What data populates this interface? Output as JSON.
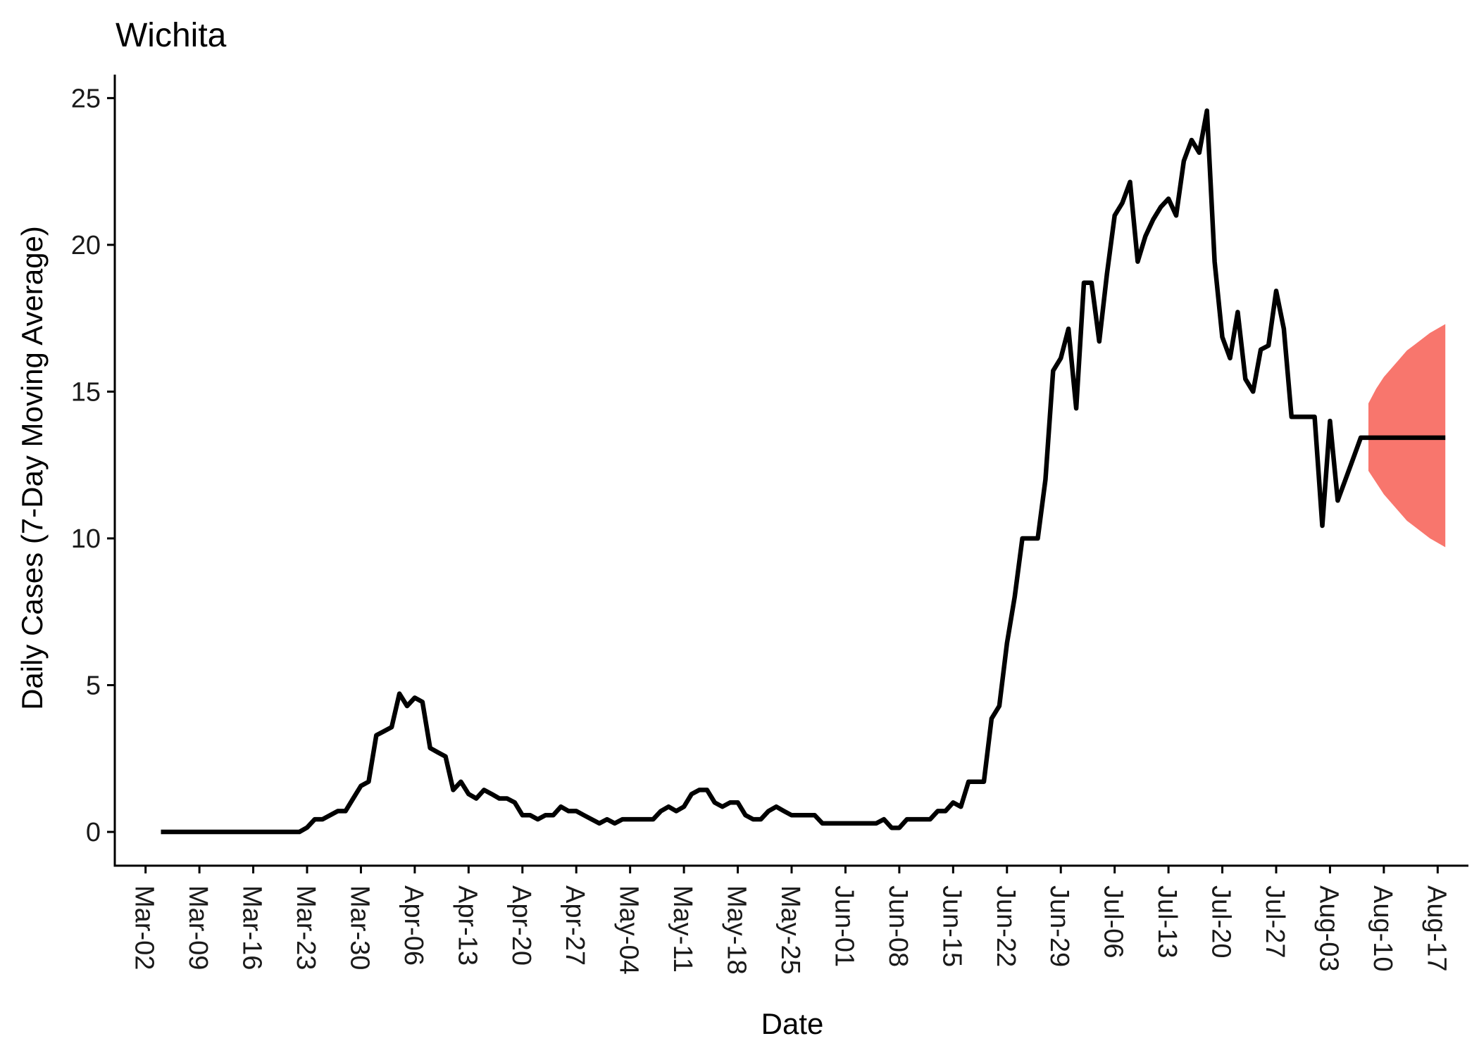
{
  "chart_data": {
    "type": "line",
    "title": "Wichita",
    "xlabel": "Date",
    "ylabel": "Daily Cases (7-Day Moving Average)",
    "ylim": [
      -1.15,
      25.8
    ],
    "xlim": [
      "2020-02-27",
      "2020-08-21"
    ],
    "yticks": [
      0,
      5,
      10,
      15,
      20,
      25
    ],
    "xticks": [
      {
        "date": "2020-03-02",
        "label": "Mar-02"
      },
      {
        "date": "2020-03-09",
        "label": "Mar-09"
      },
      {
        "date": "2020-03-16",
        "label": "Mar-16"
      },
      {
        "date": "2020-03-23",
        "label": "Mar-23"
      },
      {
        "date": "2020-03-30",
        "label": "Mar-30"
      },
      {
        "date": "2020-04-06",
        "label": "Apr-06"
      },
      {
        "date": "2020-04-13",
        "label": "Apr-13"
      },
      {
        "date": "2020-04-20",
        "label": "Apr-20"
      },
      {
        "date": "2020-04-27",
        "label": "Apr-27"
      },
      {
        "date": "2020-05-04",
        "label": "May-04"
      },
      {
        "date": "2020-05-11",
        "label": "May-11"
      },
      {
        "date": "2020-05-18",
        "label": "May-18"
      },
      {
        "date": "2020-05-25",
        "label": "May-25"
      },
      {
        "date": "2020-06-01",
        "label": "Jun-01"
      },
      {
        "date": "2020-06-08",
        "label": "Jun-08"
      },
      {
        "date": "2020-06-15",
        "label": "Jun-15"
      },
      {
        "date": "2020-06-22",
        "label": "Jun-22"
      },
      {
        "date": "2020-06-29",
        "label": "Jun-29"
      },
      {
        "date": "2020-07-06",
        "label": "Jul-06"
      },
      {
        "date": "2020-07-13",
        "label": "Jul-13"
      },
      {
        "date": "2020-07-20",
        "label": "Jul-20"
      },
      {
        "date": "2020-07-27",
        "label": "Jul-27"
      },
      {
        "date": "2020-08-03",
        "label": "Aug-03"
      },
      {
        "date": "2020-08-10",
        "label": "Aug-10"
      },
      {
        "date": "2020-08-17",
        "label": "Aug-17"
      }
    ],
    "grid": false,
    "legend": "none",
    "series": [
      {
        "color": "#000000",
        "points": [
          [
            "2020-03-04",
            0
          ],
          [
            "2020-03-05",
            0
          ],
          [
            "2020-03-06",
            0
          ],
          [
            "2020-03-07",
            0
          ],
          [
            "2020-03-08",
            0
          ],
          [
            "2020-03-09",
            0
          ],
          [
            "2020-03-10",
            0
          ],
          [
            "2020-03-11",
            0
          ],
          [
            "2020-03-12",
            0
          ],
          [
            "2020-03-13",
            0
          ],
          [
            "2020-03-14",
            0
          ],
          [
            "2020-03-15",
            0
          ],
          [
            "2020-03-16",
            0
          ],
          [
            "2020-03-17",
            0
          ],
          [
            "2020-03-18",
            0
          ],
          [
            "2020-03-19",
            0
          ],
          [
            "2020-03-20",
            0
          ],
          [
            "2020-03-21",
            0
          ],
          [
            "2020-03-22",
            0
          ],
          [
            "2020-03-23",
            0.15
          ],
          [
            "2020-03-24",
            0.43
          ],
          [
            "2020-03-25",
            0.43
          ],
          [
            "2020-03-26",
            0.57
          ],
          [
            "2020-03-27",
            0.71
          ],
          [
            "2020-03-28",
            0.71
          ],
          [
            "2020-03-29",
            1.14
          ],
          [
            "2020-03-30",
            1.57
          ],
          [
            "2020-03-31",
            1.71
          ],
          [
            "2020-04-01",
            3.29
          ],
          [
            "2020-04-02",
            3.43
          ],
          [
            "2020-04-03",
            3.57
          ],
          [
            "2020-04-04",
            4.71
          ],
          [
            "2020-04-05",
            4.29
          ],
          [
            "2020-04-06",
            4.57
          ],
          [
            "2020-04-07",
            4.43
          ],
          [
            "2020-04-08",
            2.86
          ],
          [
            "2020-04-09",
            2.71
          ],
          [
            "2020-04-10",
            2.57
          ],
          [
            "2020-04-11",
            1.43
          ],
          [
            "2020-04-12",
            1.71
          ],
          [
            "2020-04-13",
            1.29
          ],
          [
            "2020-04-14",
            1.14
          ],
          [
            "2020-04-15",
            1.43
          ],
          [
            "2020-04-16",
            1.29
          ],
          [
            "2020-04-17",
            1.14
          ],
          [
            "2020-04-18",
            1.14
          ],
          [
            "2020-04-19",
            1.0
          ],
          [
            "2020-04-20",
            0.57
          ],
          [
            "2020-04-21",
            0.57
          ],
          [
            "2020-04-22",
            0.43
          ],
          [
            "2020-04-23",
            0.57
          ],
          [
            "2020-04-24",
            0.57
          ],
          [
            "2020-04-25",
            0.86
          ],
          [
            "2020-04-26",
            0.71
          ],
          [
            "2020-04-27",
            0.71
          ],
          [
            "2020-04-28",
            0.57
          ],
          [
            "2020-04-29",
            0.43
          ],
          [
            "2020-04-30",
            0.29
          ],
          [
            "2020-05-01",
            0.43
          ],
          [
            "2020-05-02",
            0.29
          ],
          [
            "2020-05-03",
            0.43
          ],
          [
            "2020-05-04",
            0.43
          ],
          [
            "2020-05-05",
            0.43
          ],
          [
            "2020-05-06",
            0.43
          ],
          [
            "2020-05-07",
            0.43
          ],
          [
            "2020-05-08",
            0.71
          ],
          [
            "2020-05-09",
            0.86
          ],
          [
            "2020-05-10",
            0.71
          ],
          [
            "2020-05-11",
            0.86
          ],
          [
            "2020-05-12",
            1.29
          ],
          [
            "2020-05-13",
            1.43
          ],
          [
            "2020-05-14",
            1.43
          ],
          [
            "2020-05-15",
            1.0
          ],
          [
            "2020-05-16",
            0.86
          ],
          [
            "2020-05-17",
            1.0
          ],
          [
            "2020-05-18",
            1.0
          ],
          [
            "2020-05-19",
            0.57
          ],
          [
            "2020-05-20",
            0.43
          ],
          [
            "2020-05-21",
            0.43
          ],
          [
            "2020-05-22",
            0.71
          ],
          [
            "2020-05-23",
            0.86
          ],
          [
            "2020-05-24",
            0.71
          ],
          [
            "2020-05-25",
            0.57
          ],
          [
            "2020-05-26",
            0.57
          ],
          [
            "2020-05-27",
            0.57
          ],
          [
            "2020-05-28",
            0.57
          ],
          [
            "2020-05-29",
            0.29
          ],
          [
            "2020-05-30",
            0.29
          ],
          [
            "2020-05-31",
            0.29
          ],
          [
            "2020-06-01",
            0.29
          ],
          [
            "2020-06-02",
            0.29
          ],
          [
            "2020-06-03",
            0.29
          ],
          [
            "2020-06-04",
            0.29
          ],
          [
            "2020-06-05",
            0.29
          ],
          [
            "2020-06-06",
            0.43
          ],
          [
            "2020-06-07",
            0.14
          ],
          [
            "2020-06-08",
            0.14
          ],
          [
            "2020-06-09",
            0.43
          ],
          [
            "2020-06-10",
            0.43
          ],
          [
            "2020-06-11",
            0.43
          ],
          [
            "2020-06-12",
            0.43
          ],
          [
            "2020-06-13",
            0.71
          ],
          [
            "2020-06-14",
            0.71
          ],
          [
            "2020-06-15",
            1.0
          ],
          [
            "2020-06-16",
            0.86
          ],
          [
            "2020-06-17",
            1.71
          ],
          [
            "2020-06-18",
            1.71
          ],
          [
            "2020-06-19",
            1.71
          ],
          [
            "2020-06-20",
            3.86
          ],
          [
            "2020-06-21",
            4.29
          ],
          [
            "2020-06-22",
            6.43
          ],
          [
            "2020-06-23",
            8.0
          ],
          [
            "2020-06-24",
            10.0
          ],
          [
            "2020-06-25",
            10.0
          ],
          [
            "2020-06-26",
            10.0
          ],
          [
            "2020-06-27",
            12.0
          ],
          [
            "2020-06-28",
            15.71
          ],
          [
            "2020-06-29",
            16.14
          ],
          [
            "2020-06-30",
            17.14
          ],
          [
            "2020-07-01",
            14.43
          ],
          [
            "2020-07-02",
            18.71
          ],
          [
            "2020-07-03",
            18.71
          ],
          [
            "2020-07-04",
            16.71
          ],
          [
            "2020-07-05",
            19.0
          ],
          [
            "2020-07-06",
            21.0
          ],
          [
            "2020-07-07",
            21.43
          ],
          [
            "2020-07-08",
            22.14
          ],
          [
            "2020-07-09",
            19.43
          ],
          [
            "2020-07-10",
            20.29
          ],
          [
            "2020-07-11",
            20.86
          ],
          [
            "2020-07-12",
            21.29
          ],
          [
            "2020-07-13",
            21.57
          ],
          [
            "2020-07-14",
            21.0
          ],
          [
            "2020-07-15",
            22.86
          ],
          [
            "2020-07-16",
            23.57
          ],
          [
            "2020-07-17",
            23.14
          ],
          [
            "2020-07-18",
            24.57
          ],
          [
            "2020-07-19",
            19.43
          ],
          [
            "2020-07-20",
            16.86
          ],
          [
            "2020-07-21",
            16.14
          ],
          [
            "2020-07-22",
            17.71
          ],
          [
            "2020-07-23",
            15.43
          ],
          [
            "2020-07-24",
            15.0
          ],
          [
            "2020-07-25",
            16.43
          ],
          [
            "2020-07-26",
            16.57
          ],
          [
            "2020-07-27",
            18.43
          ],
          [
            "2020-07-28",
            17.14
          ],
          [
            "2020-07-29",
            14.14
          ],
          [
            "2020-07-30",
            14.14
          ],
          [
            "2020-07-31",
            14.14
          ],
          [
            "2020-08-01",
            14.14
          ],
          [
            "2020-08-02",
            10.43
          ],
          [
            "2020-08-03",
            14.0
          ],
          [
            "2020-08-04",
            11.29
          ],
          [
            "2020-08-05",
            12.0
          ],
          [
            "2020-08-06",
            12.71
          ],
          [
            "2020-08-07",
            13.43
          ],
          [
            "2020-08-08",
            13.43
          ],
          [
            "2020-08-09",
            13.43
          ],
          [
            "2020-08-10",
            13.43
          ],
          [
            "2020-08-11",
            13.43
          ],
          [
            "2020-08-12",
            13.43
          ],
          [
            "2020-08-13",
            13.43
          ],
          [
            "2020-08-14",
            13.43
          ],
          [
            "2020-08-15",
            13.43
          ],
          [
            "2020-08-16",
            13.43
          ],
          [
            "2020-08-17",
            13.43
          ],
          [
            "2020-08-18",
            13.43
          ]
        ]
      }
    ],
    "forecast_band": {
      "color": "#f8766d",
      "points": [
        [
          "2020-08-08",
          12.3,
          14.6
        ],
        [
          "2020-08-09",
          11.9,
          15.1
        ],
        [
          "2020-08-10",
          11.5,
          15.5
        ],
        [
          "2020-08-11",
          11.2,
          15.8
        ],
        [
          "2020-08-12",
          10.9,
          16.1
        ],
        [
          "2020-08-13",
          10.6,
          16.4
        ],
        [
          "2020-08-14",
          10.4,
          16.6
        ],
        [
          "2020-08-15",
          10.2,
          16.8
        ],
        [
          "2020-08-16",
          10.0,
          17.0
        ],
        [
          "2020-08-17",
          9.85,
          17.15
        ],
        [
          "2020-08-18",
          9.7,
          17.3
        ]
      ]
    }
  }
}
